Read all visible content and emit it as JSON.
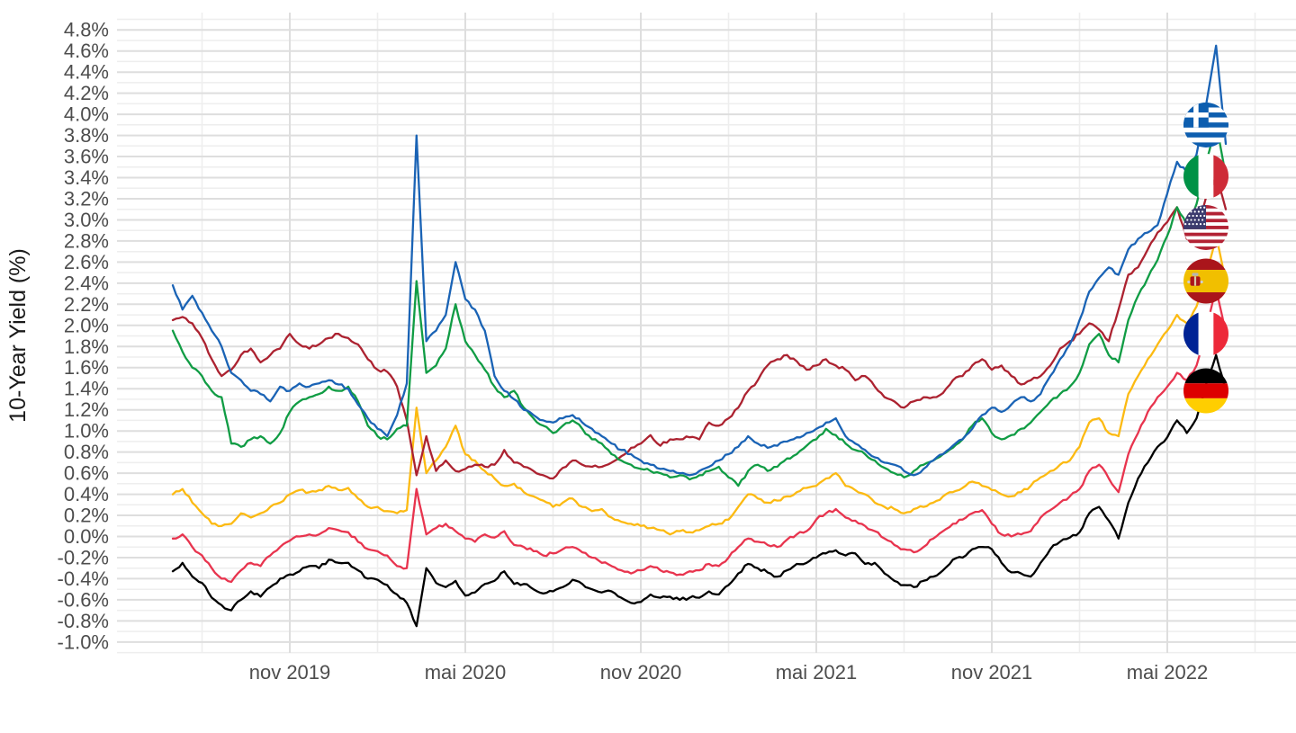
{
  "chart_data": {
    "type": "line",
    "title": "",
    "ylabel": "10-Year Yield (%)",
    "xlabel": "",
    "ylim": [
      -1.0,
      4.8
    ],
    "ytick_step": 0.2,
    "grid": {
      "major": true,
      "minor": true
    },
    "legend": "circular country flag badges at right end of each line",
    "y_tick_labels": [
      "4.8%",
      "4.6%",
      "4.4%",
      "4.2%",
      "4.0%",
      "3.8%",
      "3.6%",
      "3.4%",
      "3.2%",
      "3.0%",
      "2.8%",
      "2.6%",
      "2.4%",
      "2.2%",
      "2.0%",
      "1.8%",
      "1.6%",
      "1.4%",
      "1.2%",
      "1.0%",
      "0.8%",
      "0.6%",
      "0.4%",
      "0.2%",
      "0.0%",
      "-0.2%",
      "-0.4%",
      "-0.6%",
      "-0.8%",
      "-1.0%"
    ],
    "x_tick_labels": [
      "nov 2019",
      "mai 2020",
      "nov 2020",
      "mai 2021",
      "nov 2021",
      "mai 2022"
    ],
    "x_ticks_month_offset": [
      4,
      10,
      16,
      22,
      28,
      34
    ],
    "x_minor_month_offset": [
      1,
      7,
      13,
      19,
      25,
      31,
      37
    ],
    "x_range_months": 36,
    "samples_per_month": 3,
    "series": [
      {
        "id": "greece",
        "name": "Greece",
        "flag_icon": "greece-flag-icon",
        "color": "#1A63B5",
        "values": [
          2.38,
          2.15,
          2.28,
          2.12,
          1.95,
          1.8,
          1.55,
          1.48,
          1.38,
          1.35,
          1.28,
          1.42,
          1.38,
          1.45,
          1.42,
          1.45,
          1.48,
          1.44,
          1.4,
          1.25,
          1.12,
          1.02,
          0.95,
          1.15,
          1.45,
          3.8,
          1.85,
          1.95,
          2.1,
          2.6,
          2.25,
          2.15,
          1.95,
          1.52,
          1.38,
          1.3,
          1.2,
          1.15,
          1.1,
          1.08,
          1.12,
          1.15,
          1.08,
          1.02,
          0.95,
          0.88,
          0.82,
          0.78,
          0.72,
          0.68,
          0.64,
          0.62,
          0.6,
          0.58,
          0.62,
          0.66,
          0.72,
          0.78,
          0.85,
          0.95,
          0.88,
          0.84,
          0.86,
          0.9,
          0.94,
          0.98,
          1.02,
          1.08,
          1.12,
          0.95,
          0.88,
          0.82,
          0.75,
          0.7,
          0.68,
          0.62,
          0.58,
          0.64,
          0.72,
          0.78,
          0.86,
          0.92,
          1.02,
          1.15,
          1.22,
          1.18,
          1.25,
          1.32,
          1.28,
          1.35,
          1.52,
          1.68,
          1.82,
          2.05,
          2.32,
          2.45,
          2.55,
          2.48,
          2.72,
          2.82,
          2.88,
          2.95,
          3.25,
          3.55,
          3.45,
          3.62,
          4.1,
          4.65,
          3.72
        ]
      },
      {
        "id": "italy",
        "name": "Italy",
        "flag_icon": "italy-flag-icon",
        "color": "#109C44",
        "values": [
          1.95,
          1.75,
          1.6,
          1.52,
          1.38,
          1.32,
          0.88,
          0.85,
          0.92,
          0.95,
          0.88,
          0.98,
          1.18,
          1.28,
          1.32,
          1.35,
          1.42,
          1.38,
          1.42,
          1.28,
          1.05,
          0.95,
          0.92,
          1.02,
          1.05,
          2.42,
          1.55,
          1.62,
          1.78,
          2.2,
          1.85,
          1.72,
          1.58,
          1.42,
          1.32,
          1.38,
          1.22,
          1.12,
          1.05,
          0.98,
          1.05,
          1.1,
          1.02,
          0.92,
          0.88,
          0.78,
          0.72,
          0.68,
          0.64,
          0.62,
          0.6,
          0.56,
          0.58,
          0.54,
          0.58,
          0.62,
          0.66,
          0.56,
          0.48,
          0.62,
          0.68,
          0.62,
          0.66,
          0.74,
          0.78,
          0.86,
          0.92,
          1.02,
          0.96,
          0.88,
          0.82,
          0.78,
          0.72,
          0.65,
          0.6,
          0.56,
          0.62,
          0.68,
          0.72,
          0.78,
          0.84,
          0.92,
          1.05,
          1.12,
          0.98,
          0.92,
          0.96,
          1.02,
          1.08,
          1.18,
          1.28,
          1.35,
          1.42,
          1.55,
          1.82,
          1.92,
          1.72,
          1.65,
          2.05,
          2.28,
          2.45,
          2.62,
          2.85,
          3.12,
          2.95,
          3.15,
          3.55,
          3.92,
          3.42
        ]
      },
      {
        "id": "united-states",
        "name": "United States",
        "flag_icon": "usa-flag-icon",
        "color": "#AC2230",
        "values": [
          2.05,
          2.08,
          2.02,
          1.88,
          1.68,
          1.52,
          1.58,
          1.72,
          1.78,
          1.65,
          1.72,
          1.78,
          1.92,
          1.82,
          1.78,
          1.82,
          1.88,
          1.92,
          1.88,
          1.82,
          1.68,
          1.58,
          1.56,
          1.42,
          1.1,
          0.58,
          0.95,
          0.62,
          0.72,
          0.62,
          0.64,
          0.68,
          0.66,
          0.68,
          0.82,
          0.7,
          0.66,
          0.62,
          0.58,
          0.55,
          0.65,
          0.72,
          0.68,
          0.66,
          0.66,
          0.7,
          0.76,
          0.84,
          0.88,
          0.96,
          0.86,
          0.92,
          0.92,
          0.94,
          0.92,
          1.08,
          1.05,
          1.12,
          1.22,
          1.38,
          1.48,
          1.62,
          1.68,
          1.72,
          1.66,
          1.58,
          1.62,
          1.68,
          1.62,
          1.58,
          1.48,
          1.52,
          1.42,
          1.32,
          1.28,
          1.22,
          1.28,
          1.32,
          1.32,
          1.36,
          1.48,
          1.52,
          1.62,
          1.68,
          1.58,
          1.62,
          1.52,
          1.44,
          1.48,
          1.52,
          1.62,
          1.78,
          1.85,
          1.92,
          2.02,
          1.96,
          1.85,
          2.15,
          2.48,
          2.55,
          2.72,
          2.88,
          2.98,
          3.12,
          2.82,
          2.92,
          3.22,
          3.42,
          3.1
        ]
      },
      {
        "id": "spain",
        "name": "Spain",
        "flag_icon": "spain-flag-icon",
        "color": "#FCBA12",
        "values": [
          0.4,
          0.45,
          0.32,
          0.22,
          0.12,
          0.1,
          0.12,
          0.22,
          0.18,
          0.22,
          0.28,
          0.32,
          0.4,
          0.44,
          0.42,
          0.44,
          0.48,
          0.44,
          0.46,
          0.36,
          0.28,
          0.28,
          0.24,
          0.22,
          0.25,
          1.22,
          0.6,
          0.72,
          0.85,
          1.05,
          0.78,
          0.72,
          0.62,
          0.55,
          0.48,
          0.5,
          0.42,
          0.38,
          0.34,
          0.28,
          0.32,
          0.36,
          0.28,
          0.24,
          0.26,
          0.18,
          0.14,
          0.12,
          0.1,
          0.08,
          0.06,
          0.02,
          0.05,
          0.04,
          0.06,
          0.1,
          0.12,
          0.16,
          0.28,
          0.4,
          0.36,
          0.32,
          0.34,
          0.38,
          0.42,
          0.46,
          0.48,
          0.55,
          0.6,
          0.48,
          0.44,
          0.4,
          0.32,
          0.28,
          0.26,
          0.22,
          0.26,
          0.28,
          0.32,
          0.38,
          0.42,
          0.46,
          0.52,
          0.48,
          0.44,
          0.4,
          0.38,
          0.42,
          0.48,
          0.56,
          0.62,
          0.68,
          0.72,
          0.85,
          1.08,
          1.12,
          0.98,
          0.95,
          1.35,
          1.52,
          1.68,
          1.82,
          1.95,
          2.1,
          2.02,
          2.18,
          2.48,
          2.85,
          2.42
        ]
      },
      {
        "id": "france",
        "name": "France",
        "flag_icon": "france-flag-icon",
        "color": "#E8344E",
        "values": [
          -0.02,
          0.02,
          -0.1,
          -0.18,
          -0.3,
          -0.4,
          -0.43,
          -0.32,
          -0.25,
          -0.28,
          -0.18,
          -0.1,
          -0.04,
          0.0,
          0.02,
          0.02,
          0.08,
          0.06,
          0.04,
          -0.05,
          -0.12,
          -0.14,
          -0.18,
          -0.28,
          -0.3,
          0.45,
          0.02,
          0.08,
          0.12,
          0.05,
          -0.02,
          -0.05,
          0.02,
          -0.01,
          0.05,
          -0.08,
          -0.1,
          -0.14,
          -0.18,
          -0.16,
          -0.12,
          -0.1,
          -0.15,
          -0.2,
          -0.25,
          -0.28,
          -0.32,
          -0.35,
          -0.32,
          -0.28,
          -0.32,
          -0.34,
          -0.36,
          -0.33,
          -0.32,
          -0.26,
          -0.28,
          -0.2,
          -0.1,
          -0.02,
          -0.05,
          -0.08,
          -0.1,
          -0.03,
          0.02,
          0.05,
          0.16,
          0.22,
          0.26,
          0.18,
          0.15,
          0.1,
          0.05,
          -0.02,
          -0.08,
          -0.12,
          -0.15,
          -0.1,
          -0.02,
          0.05,
          0.12,
          0.16,
          0.22,
          0.25,
          0.12,
          0.02,
          0.0,
          0.02,
          0.05,
          0.18,
          0.25,
          0.32,
          0.38,
          0.45,
          0.62,
          0.68,
          0.55,
          0.42,
          0.78,
          0.98,
          1.18,
          1.32,
          1.42,
          1.55,
          1.48,
          1.62,
          1.95,
          2.35,
          1.92
        ]
      },
      {
        "id": "germany",
        "name": "Germany",
        "flag_icon": "germany-flag-icon",
        "color": "#000000",
        "values": [
          -0.33,
          -0.25,
          -0.38,
          -0.44,
          -0.58,
          -0.65,
          -0.7,
          -0.6,
          -0.52,
          -0.57,
          -0.48,
          -0.4,
          -0.36,
          -0.33,
          -0.28,
          -0.3,
          -0.22,
          -0.25,
          -0.25,
          -0.32,
          -0.4,
          -0.41,
          -0.46,
          -0.55,
          -0.63,
          -0.85,
          -0.3,
          -0.44,
          -0.48,
          -0.42,
          -0.56,
          -0.53,
          -0.45,
          -0.42,
          -0.33,
          -0.45,
          -0.45,
          -0.5,
          -0.54,
          -0.52,
          -0.48,
          -0.41,
          -0.45,
          -0.5,
          -0.53,
          -0.52,
          -0.58,
          -0.63,
          -0.62,
          -0.55,
          -0.58,
          -0.57,
          -0.6,
          -0.58,
          -0.58,
          -0.52,
          -0.55,
          -0.46,
          -0.35,
          -0.26,
          -0.3,
          -0.34,
          -0.38,
          -0.32,
          -0.26,
          -0.25,
          -0.2,
          -0.16,
          -0.13,
          -0.18,
          -0.16,
          -0.26,
          -0.25,
          -0.35,
          -0.42,
          -0.46,
          -0.48,
          -0.42,
          -0.38,
          -0.32,
          -0.22,
          -0.2,
          -0.12,
          -0.1,
          -0.12,
          -0.25,
          -0.34,
          -0.35,
          -0.38,
          -0.25,
          -0.12,
          -0.05,
          -0.01,
          0.04,
          0.22,
          0.28,
          0.15,
          -0.02,
          0.32,
          0.55,
          0.7,
          0.85,
          0.94,
          1.1,
          0.98,
          1.12,
          1.45,
          1.72,
          1.38
        ]
      }
    ]
  },
  "colors": {
    "background": "#ffffff",
    "major_grid": "#dedede",
    "minor_grid": "#eeeeee",
    "tick_label": "#4d4d4d",
    "axis_title": "#1a1a1a"
  }
}
